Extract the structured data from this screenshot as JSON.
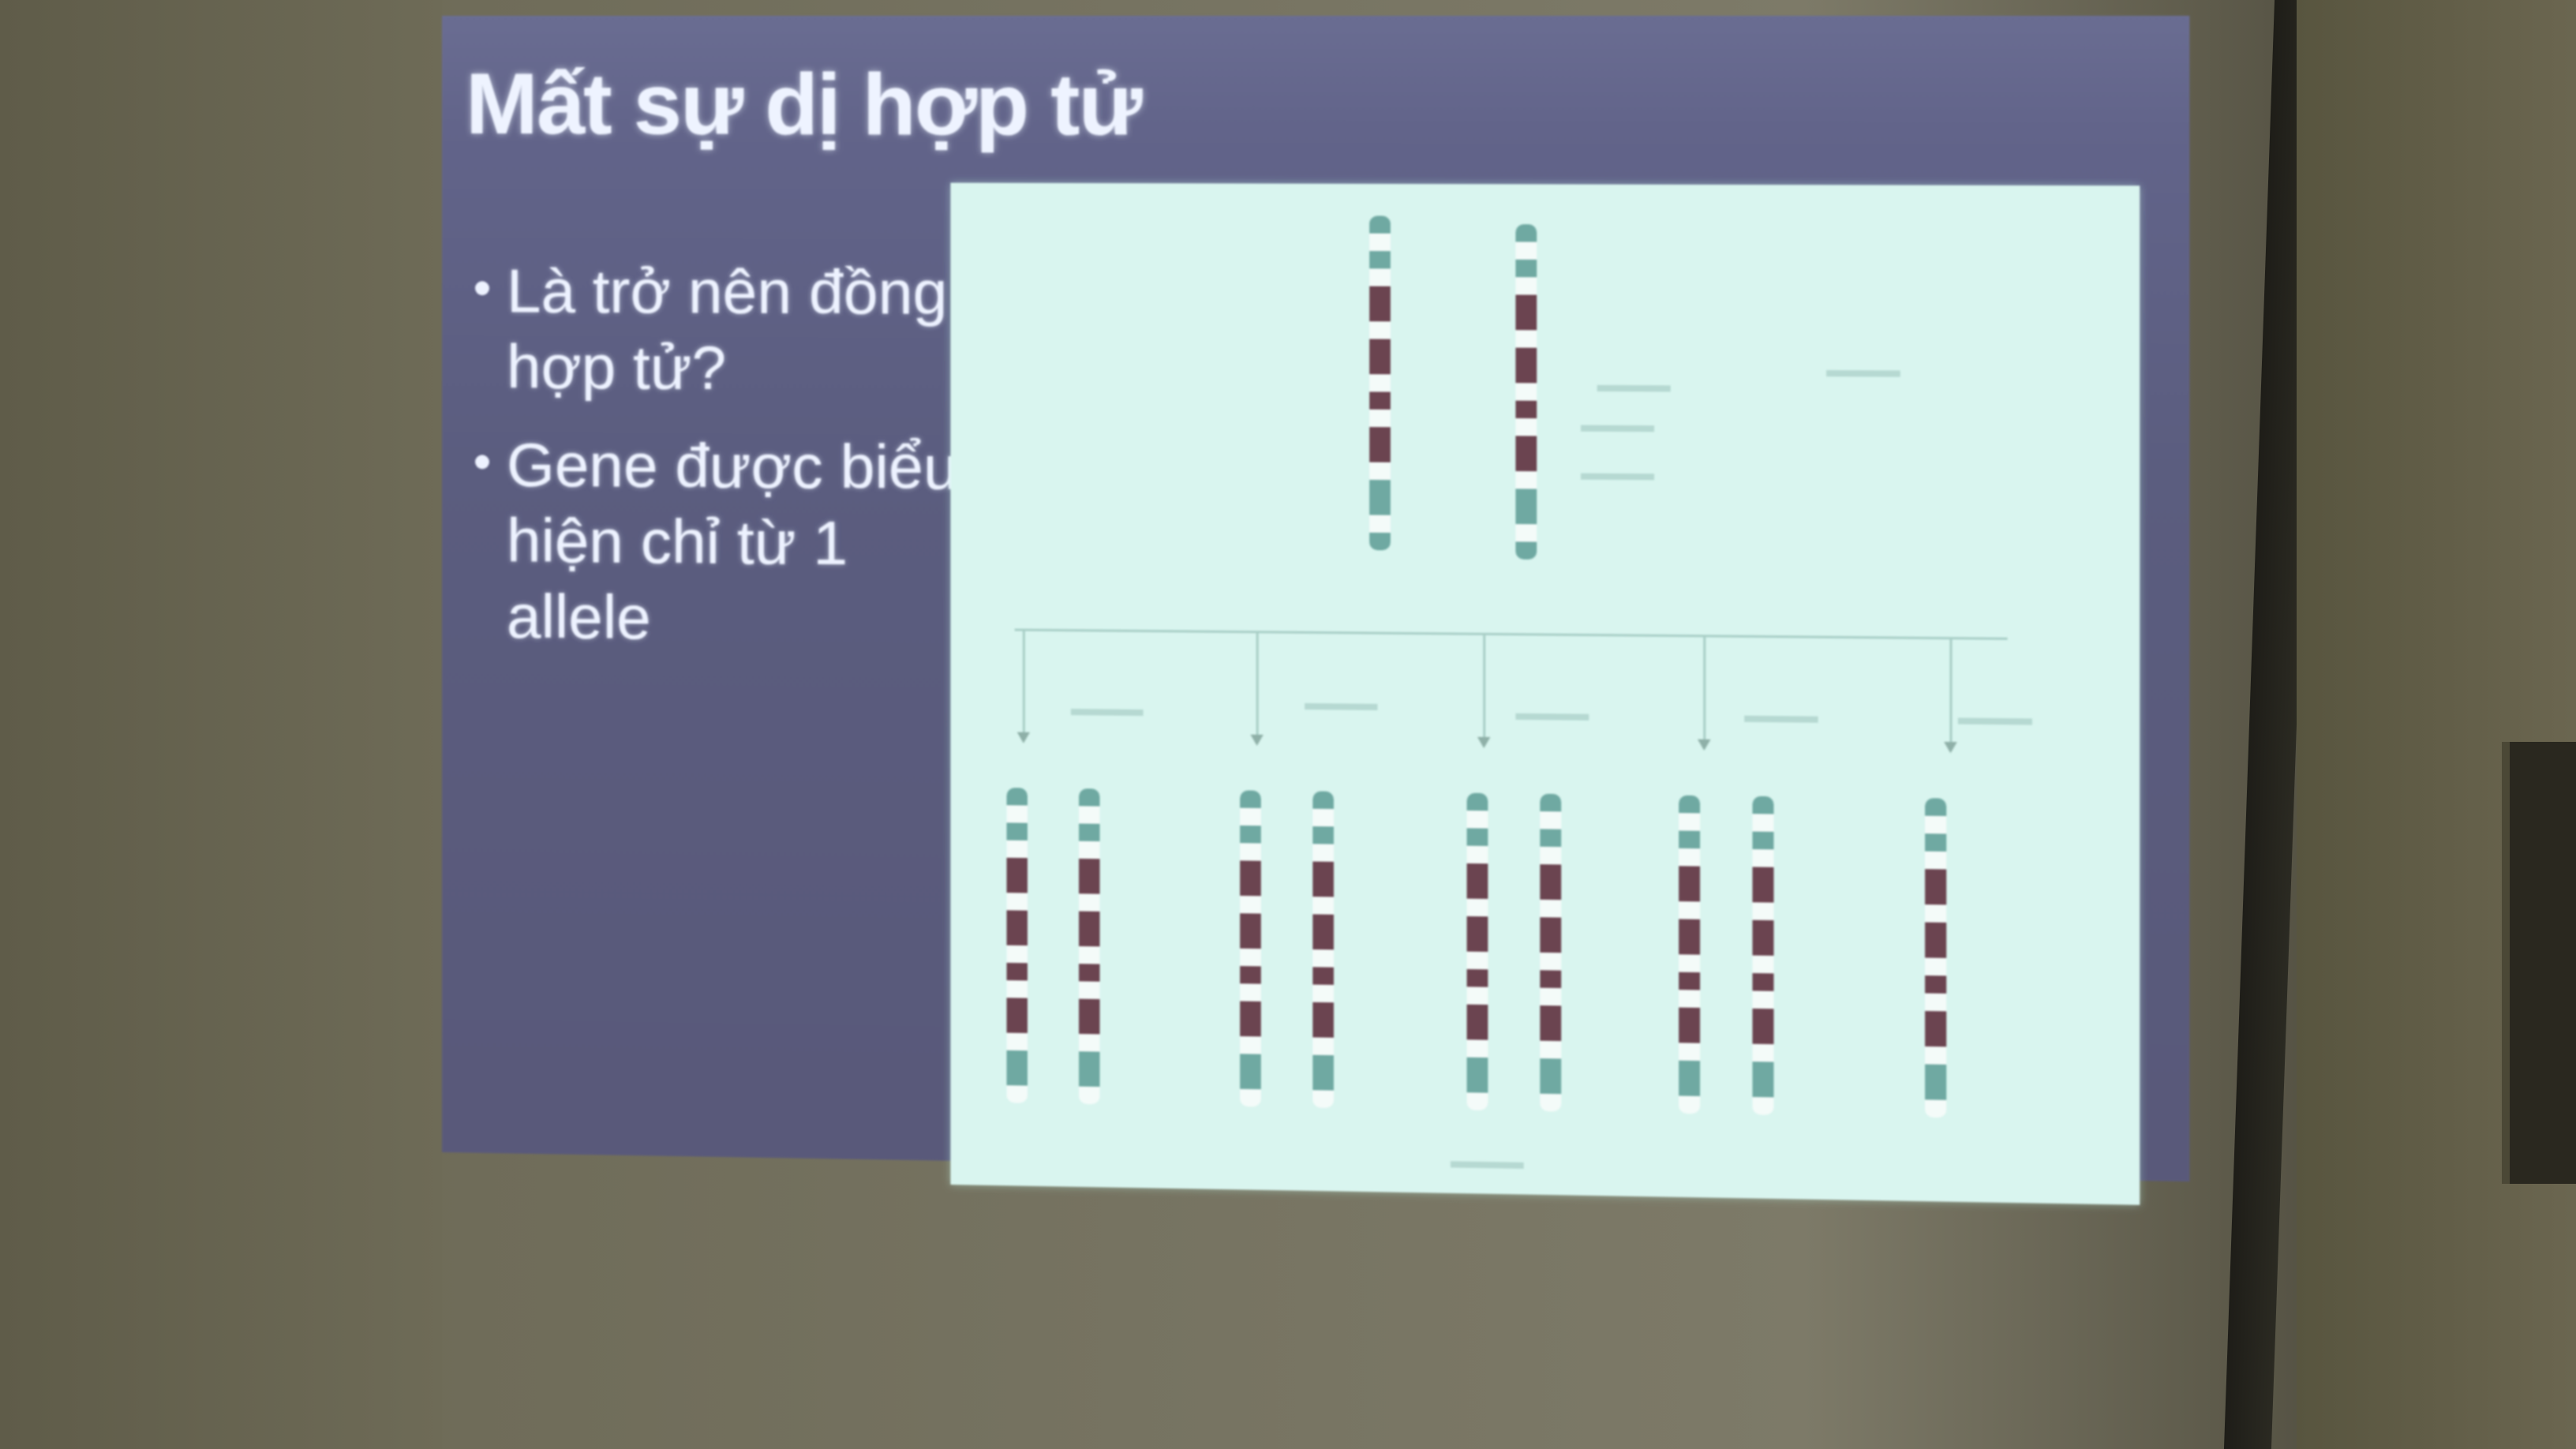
{
  "slide": {
    "title": "Mất sự dị hợp tử",
    "bullets": [
      {
        "line1": "Là trở nên đồng",
        "line2": "hợp tử?"
      },
      {
        "line1": "Gene được biểu",
        "line2": "hiện chỉ từ 1 allele"
      }
    ]
  },
  "colors": {
    "slide_bg": "#5b5d7f",
    "figure_bg": "#d9f5ef",
    "band_dark": "#6b4450",
    "band_light": "#f4fbf9",
    "band_teal": "#6fa9a2"
  },
  "icons": {
    "bullet": "bullet-dot-icon"
  }
}
